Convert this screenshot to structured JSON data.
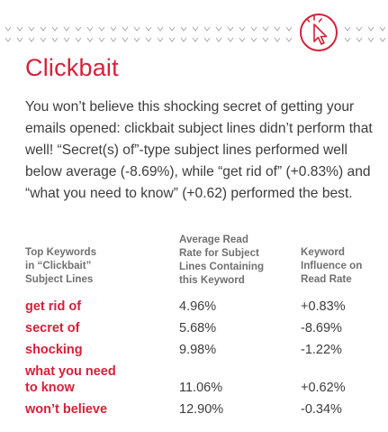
{
  "icon": "cursor-click-icon",
  "accent_color": "#d6203a",
  "title": "Clickbait",
  "intro": "You won’t believe this shocking secret of getting your emails opened: clickbait subject lines didn’t perform that well! “Secret(s) of”-type subject lines performed well below average (-8.69%), while “get rid of” (+0.83%) and “what you need to know” (+0.62) performed the best.",
  "table": {
    "headers": {
      "keyword": "Top Keywords\nin “Clickbait”\nSubject Lines",
      "avg_read_rate": "Average Read\nRate for Subject\nLines Containing\nthis Keyword",
      "influence": "Keyword\nInfluence on\nRead Rate"
    },
    "rows": [
      {
        "keyword": "get rid of",
        "avg": "4.96%",
        "influence": "+0.83%"
      },
      {
        "keyword": "secret of",
        "avg": "5.68%",
        "influence": "-8.69%"
      },
      {
        "keyword": "shocking",
        "avg": "9.98%",
        "influence": "-1.22%"
      },
      {
        "keyword": "what you need\nto know",
        "avg": "11.06%",
        "influence": "+0.62%"
      },
      {
        "keyword": "won’t believe",
        "avg": "12.90%",
        "influence": "-0.34%"
      }
    ]
  }
}
